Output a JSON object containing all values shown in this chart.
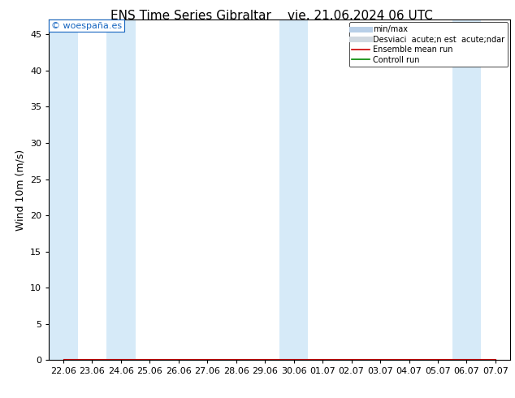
{
  "title_left": "ENS Time Series Gibraltar",
  "title_right": "vie. 21.06.2024 06 UTC",
  "ylabel": "Wind 10m (m/s)",
  "watermark": "© woespaña.es",
  "ylim": [
    0,
    47
  ],
  "yticks": [
    0,
    5,
    10,
    15,
    20,
    25,
    30,
    35,
    40,
    45
  ],
  "xtick_labels": [
    "22.06",
    "23.06",
    "24.06",
    "25.06",
    "26.06",
    "27.06",
    "28.06",
    "29.06",
    "30.06",
    "01.07",
    "02.07",
    "03.07",
    "04.07",
    "05.07",
    "06.07",
    "07.07"
  ],
  "shaded_indices": [
    0,
    2,
    8,
    14
  ],
  "shaded_color": "#d6eaf8",
  "axes_bg": "#ffffff",
  "fig_bg": "#ffffff",
  "legend_minmax_color": "#b8cfe8",
  "legend_std_color": "#d0d8e0",
  "legend_ensemble_color": "#cc0000",
  "legend_control_color": "#008800",
  "legend_label_minmax": "min/max",
  "legend_label_std": "Desviaci  acute;n est  acute;ndar",
  "legend_label_ensemble": "Ensemble mean run",
  "legend_label_control": "Controll run",
  "title_fontsize": 11,
  "tick_fontsize": 8,
  "ylabel_fontsize": 9
}
